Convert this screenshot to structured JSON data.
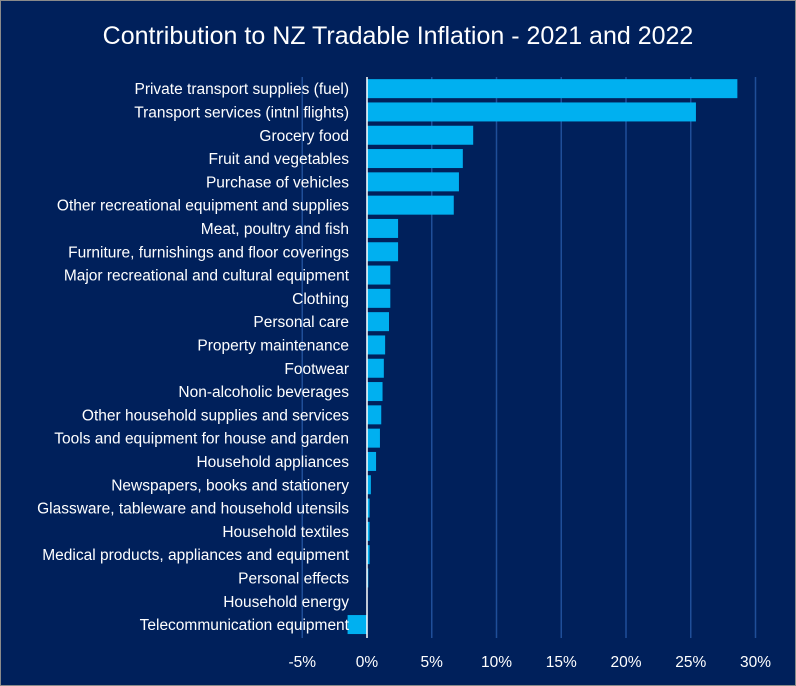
{
  "chart_data": {
    "type": "bar",
    "orientation": "horizontal",
    "title": "Contribution to NZ Tradable Inflation - 2021 and 2022",
    "xlabel": "",
    "ylabel": "",
    "xlim": [
      -5,
      30
    ],
    "x_ticks": [
      -5,
      0,
      5,
      10,
      15,
      20,
      25,
      30
    ],
    "x_tick_labels": [
      "-5%",
      "0%",
      "5%",
      "10%",
      "15%",
      "20%",
      "25%",
      "30%"
    ],
    "grid": "vertical",
    "legend": "none",
    "colors": {
      "background": "#00205b",
      "bar": "#00b0f0",
      "gridline": "#1f4e99",
      "axis": "#ffffff",
      "text": "#ffffff"
    },
    "categories": [
      "Private transport supplies (fuel)",
      "Transport services (intnl flights)",
      "Grocery food",
      "Fruit and vegetables",
      "Purchase of vehicles",
      "Other recreational equipment and supplies",
      "Meat, poultry and fish",
      "Furniture, furnishings and floor coverings",
      "Major recreational and cultural equipment",
      "Clothing",
      "Personal care",
      "Property maintenance",
      "Footwear",
      "Non-alcoholic beverages",
      "Other household supplies and services",
      "Tools and equipment for house and garden",
      "Household appliances",
      "Newspapers, books and stationery",
      "Glassware, tableware and household utensils",
      "Household textiles",
      "Medical products, appliances and equipment",
      "Personal effects",
      "Household energy",
      "Telecommunication equipment"
    ],
    "values": [
      28.6,
      25.4,
      8.2,
      7.4,
      7.1,
      6.7,
      2.4,
      2.4,
      1.8,
      1.8,
      1.7,
      1.4,
      1.3,
      1.2,
      1.1,
      1.0,
      0.7,
      0.3,
      0.2,
      0.2,
      0.2,
      0.1,
      0.0,
      -1.5
    ]
  }
}
